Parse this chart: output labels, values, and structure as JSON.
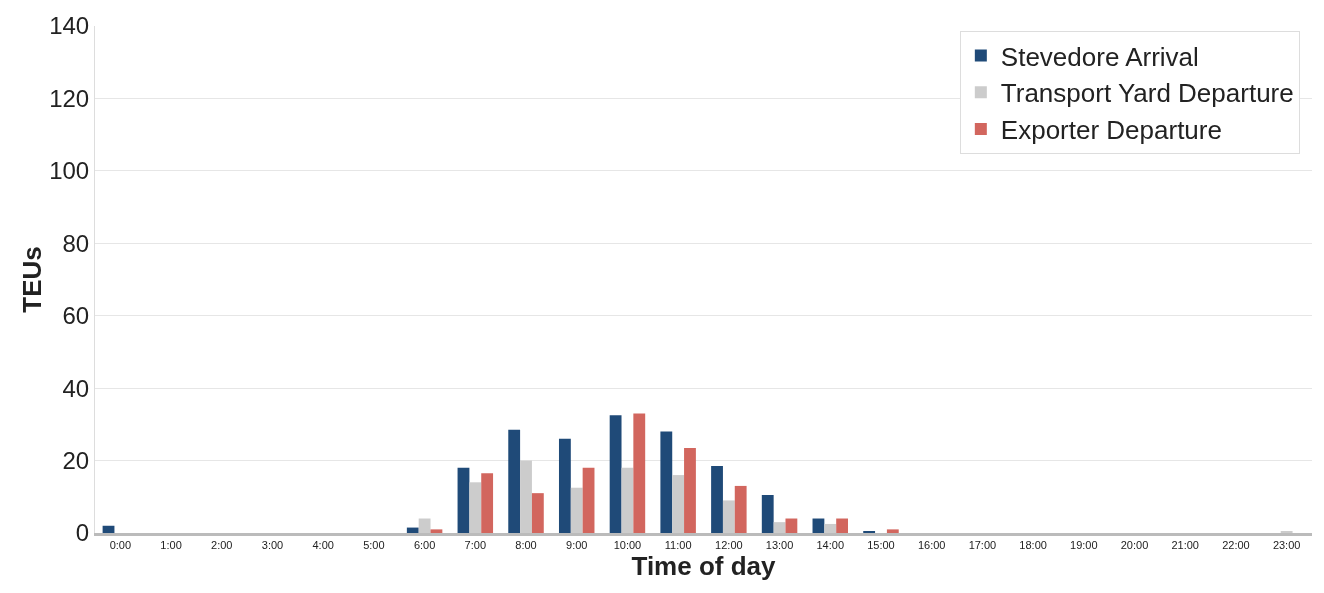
{
  "chart_data": {
    "type": "bar",
    "xlabel": "Time of day",
    "ylabel": "TEUs",
    "categories": [
      "0:00",
      "1:00",
      "2:00",
      "3:00",
      "4:00",
      "5:00",
      "6:00",
      "7:00",
      "8:00",
      "9:00",
      "10:00",
      "11:00",
      "12:00",
      "13:00",
      "14:00",
      "15:00",
      "16:00",
      "17:00",
      "18:00",
      "19:00",
      "20:00",
      "21:00",
      "22:00",
      "23:00"
    ],
    "series": [
      {
        "name": "Stevedore Arrival",
        "color": "#1f4a78",
        "values": [
          2,
          0,
          0,
          0,
          0,
          0,
          1.5,
          18,
          28.5,
          26,
          32.5,
          28,
          18.5,
          10.5,
          4,
          0.5,
          0,
          0,
          0,
          0,
          0,
          0,
          0,
          0
        ]
      },
      {
        "name": "Transport Yard Departure",
        "color": "#cccccc",
        "values": [
          0,
          0,
          0,
          0,
          0,
          0,
          4,
          14,
          20,
          12.5,
          18,
          16,
          9,
          3,
          2.5,
          0,
          0,
          0,
          0,
          0,
          0,
          0,
          0,
          0.5
        ]
      },
      {
        "name": "Exporter Departure",
        "color": "#d2665e",
        "values": [
          0,
          0,
          0,
          0,
          0,
          0,
          1,
          16.5,
          11,
          18,
          33,
          23.5,
          13,
          4,
          4,
          1,
          0,
          0,
          0,
          0,
          0,
          0,
          0,
          0
        ]
      }
    ],
    "ylim": [
      0,
      140
    ],
    "yticks": [
      0,
      20,
      40,
      60,
      80,
      100,
      120,
      140
    ],
    "grid": "y",
    "legend": "top right"
  }
}
